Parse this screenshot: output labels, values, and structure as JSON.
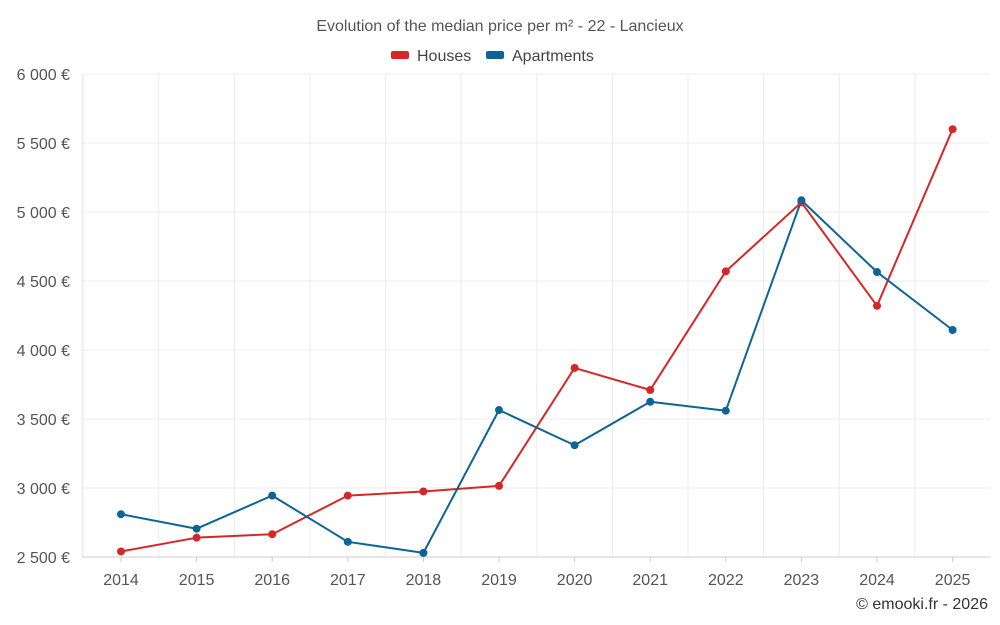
{
  "chart_data": {
    "type": "line",
    "title": "Evolution of the median price per m² - 22 - Lancieux",
    "x": [
      "2014",
      "2015",
      "2016",
      "2017",
      "2018",
      "2019",
      "2020",
      "2021",
      "2022",
      "2023",
      "2024",
      "2025"
    ],
    "ylim": [
      2500,
      6000
    ],
    "yticks": [
      2500,
      3000,
      3500,
      4000,
      4500,
      5000,
      5500,
      6000
    ],
    "ytick_labels": [
      "2 500 €",
      "3 000 €",
      "3 500 €",
      "4 000 €",
      "4 500 €",
      "5 000 €",
      "5 500 €",
      "6 000 €"
    ],
    "grid": true,
    "legend_position": "top-center",
    "series": [
      {
        "name": "Houses",
        "color": "#d62728",
        "values": [
          2540,
          2640,
          2665,
          2945,
          2975,
          3015,
          3870,
          3710,
          4570,
          5070,
          4320,
          5600
        ]
      },
      {
        "name": "Apartments",
        "color": "#0c6596",
        "values": [
          2810,
          2705,
          2945,
          2610,
          2530,
          3565,
          3310,
          3625,
          3560,
          5085,
          4565,
          4145
        ]
      }
    ],
    "credit": "© emooki.fr - 2026"
  }
}
